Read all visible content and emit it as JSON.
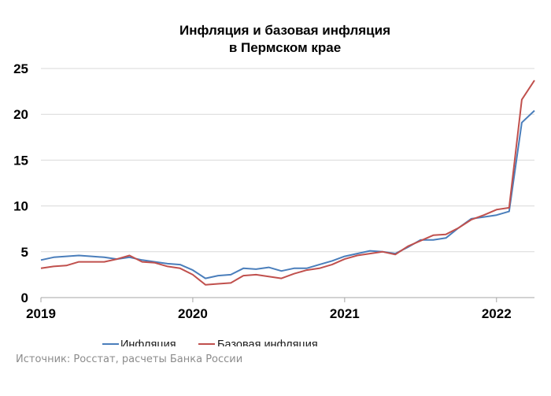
{
  "chart_data": {
    "type": "line",
    "title_line1": "Инфляция и базовая инфляция",
    "title_line2": "в Пермском крае",
    "xlabel": "",
    "ylabel": "",
    "ylim": [
      0,
      25
    ],
    "y_ticks": [
      "0",
      "5",
      "10",
      "15",
      "20",
      "25"
    ],
    "x_ticks": [
      "2019",
      "2020",
      "2021",
      "2022"
    ],
    "grid": "horizontal",
    "legend_position": "bottom",
    "x": [
      "2019-01",
      "2019-02",
      "2019-03",
      "2019-04",
      "2019-05",
      "2019-06",
      "2019-07",
      "2019-08",
      "2019-09",
      "2019-10",
      "2019-11",
      "2019-12",
      "2020-01",
      "2020-02",
      "2020-03",
      "2020-04",
      "2020-05",
      "2020-06",
      "2020-07",
      "2020-08",
      "2020-09",
      "2020-10",
      "2020-11",
      "2020-12",
      "2021-01",
      "2021-02",
      "2021-03",
      "2021-04",
      "2021-05",
      "2021-06",
      "2021-07",
      "2021-08",
      "2021-09",
      "2021-10",
      "2021-11",
      "2021-12",
      "2022-01",
      "2022-02",
      "2022-03",
      "2022-04"
    ],
    "series": [
      {
        "name": "Инфляция",
        "color": "#4a7ebb",
        "values": [
          4.1,
          4.4,
          4.5,
          4.6,
          4.5,
          4.4,
          4.2,
          4.4,
          4.1,
          3.9,
          3.7,
          3.6,
          3.0,
          2.1,
          2.4,
          2.5,
          3.2,
          3.1,
          3.3,
          2.9,
          3.2,
          3.2,
          3.6,
          4.0,
          4.5,
          4.8,
          5.1,
          5.0,
          4.8,
          5.5,
          6.3,
          6.3,
          6.5,
          7.6,
          8.6,
          8.8,
          9.0,
          9.4,
          19.1,
          20.4
        ]
      },
      {
        "name": "Базовая инфляция",
        "color": "#c0504d",
        "values": [
          3.2,
          3.4,
          3.5,
          3.9,
          3.9,
          3.9,
          4.2,
          4.6,
          3.9,
          3.8,
          3.4,
          3.2,
          2.5,
          1.4,
          1.5,
          1.6,
          2.4,
          2.5,
          2.3,
          2.1,
          2.6,
          3.0,
          3.2,
          3.6,
          4.2,
          4.6,
          4.8,
          5.0,
          4.7,
          5.6,
          6.2,
          6.8,
          6.9,
          7.6,
          8.5,
          9.0,
          9.6,
          9.8,
          21.6,
          23.7
        ]
      }
    ]
  },
  "source": "Источник: Росстат, расчеты Банка России"
}
